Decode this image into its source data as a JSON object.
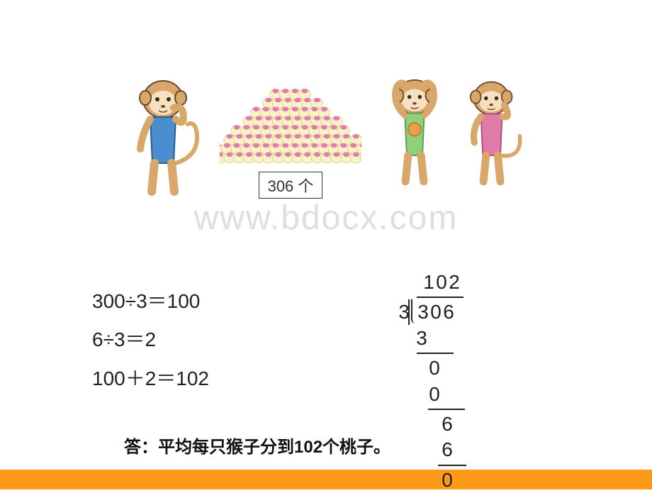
{
  "colors": {
    "orange_bar": "#fd9a1a",
    "watermark": "#dedede",
    "text": "#222222",
    "box_border": "#333333",
    "monkey_skin": "#d9a76a",
    "monkey_dark": "#6b4a2a",
    "shirt_blue": "#4a8ecf",
    "shirt_green": "#8fd07a",
    "shirt_pink": "#e07aa8",
    "peach_fill": "#f9f3c7",
    "peach_top": "#e37ab0"
  },
  "illustration": {
    "count_label": "306 个"
  },
  "watermark": "www.bdocx.com",
  "equations": {
    "line1": "300÷3＝100",
    "line2": "6÷3＝2",
    "line3": "100＋2＝102"
  },
  "long_division": {
    "quotient": [
      "1",
      "0",
      "2"
    ],
    "divisor": "3",
    "dividend": [
      "3",
      "0",
      "6"
    ],
    "step1": [
      "3"
    ],
    "step2_top": [
      "0"
    ],
    "step2_bot": [
      "0"
    ],
    "step3_top": [
      "6"
    ],
    "step3_bot": [
      "6"
    ],
    "remainder": [
      "0"
    ]
  },
  "answer": "答：平均每只猴子分到102个桃子。"
}
